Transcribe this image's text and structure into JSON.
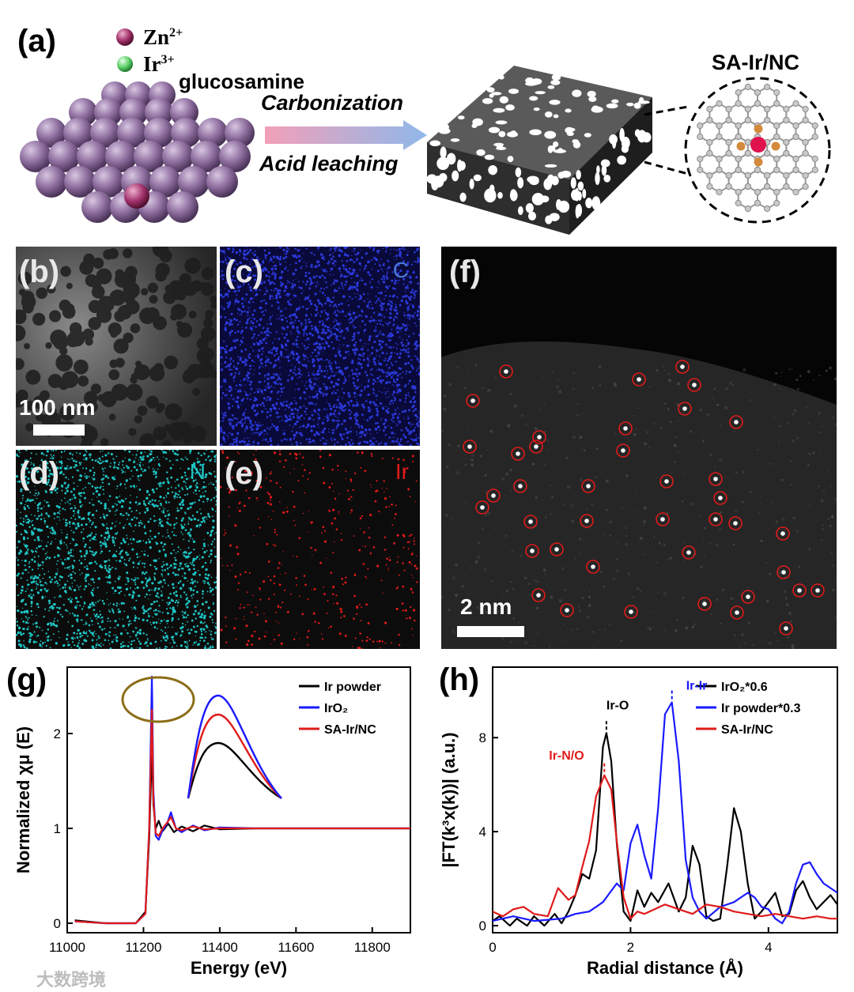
{
  "panel_a": {
    "label": "(a)",
    "legend_zn": "Zn",
    "legend_zn_sup": "2+",
    "legend_ir": "Ir",
    "legend_ir_sup": "3+",
    "glucosamine": "glucosamine",
    "step1": "Carbonization",
    "step2": "Acid leaching",
    "product": "SA-Ir/NC"
  },
  "panel_b": {
    "label": "(b)",
    "scale_bar": "100 nm"
  },
  "panel_c": {
    "label": "(c)",
    "element": "C",
    "color": "#2a38d8"
  },
  "panel_d": {
    "label": "(d)",
    "element": "N",
    "color": "#1ec4c4"
  },
  "panel_e": {
    "label": "(e)",
    "element": "Ir",
    "color": "#e01a1a"
  },
  "panel_f": {
    "label": "(f)",
    "scale_bar": "2 nm"
  },
  "panel_g": {
    "label": "(g)"
  },
  "panel_h": {
    "label": "(h)"
  },
  "watermark": "大数跨境",
  "chart_data": [
    {
      "panel": "g",
      "type": "line",
      "xlabel": "Energy (eV)",
      "ylabel": "Normalized χμ (E)",
      "xlim": [
        11000,
        11900
      ],
      "ylim": [
        -0.1,
        2.7
      ],
      "xticks": [
        11000,
        11200,
        11400,
        11600,
        11800
      ],
      "yticks": [
        0,
        1,
        2
      ],
      "legend": [
        "Ir powder",
        "IrO₂",
        "SA-Ir/NC"
      ],
      "series": [
        {
          "name": "Ir powder",
          "color": "#000000",
          "x": [
            11020,
            11100,
            11180,
            11205,
            11215,
            11222,
            11226,
            11232,
            11240,
            11250,
            11265,
            11280,
            11300,
            11330,
            11360,
            11400,
            11500,
            11600,
            11700,
            11800,
            11900
          ],
          "y": [
            0.03,
            0.0,
            0.0,
            0.12,
            0.9,
            1.85,
            1.25,
            1.0,
            1.08,
            0.97,
            1.05,
            0.96,
            1.02,
            0.97,
            1.03,
            0.99,
            1.0,
            1.0,
            1.0,
            1.0,
            1.0
          ]
        },
        {
          "name": "IrO₂",
          "color": "#1a1aff",
          "x": [
            11020,
            11100,
            11180,
            11205,
            11215,
            11222,
            11226,
            11232,
            11240,
            11250,
            11262,
            11272,
            11285,
            11300,
            11330,
            11360,
            11400,
            11500,
            11600,
            11700,
            11800,
            11900
          ],
          "y": [
            0.02,
            0.0,
            0.0,
            0.1,
            1.0,
            2.6,
            1.4,
            0.92,
            0.88,
            0.98,
            1.05,
            1.17,
            1.0,
            0.96,
            1.03,
            0.98,
            1.01,
            1.0,
            1.0,
            1.0,
            1.0,
            1.0
          ]
        },
        {
          "name": "SA-Ir/NC",
          "color": "#e01a1a",
          "x": [
            11020,
            11100,
            11180,
            11205,
            11215,
            11222,
            11226,
            11232,
            11240,
            11250,
            11262,
            11272,
            11285,
            11300,
            11330,
            11360,
            11400,
            11500,
            11600,
            11700,
            11800,
            11900
          ],
          "y": [
            0.02,
            0.0,
            0.0,
            0.1,
            1.0,
            2.25,
            1.3,
            0.95,
            0.92,
            1.0,
            1.06,
            1.12,
            1.0,
            0.98,
            1.02,
            0.99,
            1.0,
            1.0,
            1.0,
            1.0,
            1.0,
            1.0
          ]
        }
      ],
      "annotations": [
        "white-line peak circled; inset shows magnified peak region"
      ]
    },
    {
      "panel": "h",
      "type": "line",
      "xlabel": "Radial distance (Å)",
      "ylabel": "|FT(k³x(k))| (a.u.)",
      "xlim": [
        0,
        5
      ],
      "ylim": [
        -0.3,
        11
      ],
      "xticks": [
        0,
        2,
        4
      ],
      "yticks": [
        0,
        4,
        8
      ],
      "legend": [
        "IrO₂*0.6",
        "Ir powder*0.3",
        "SA-Ir/NC"
      ],
      "annotations": [
        "Ir-O",
        "Ir-Ir",
        "Ir-N/O"
      ],
      "series": [
        {
          "name": "IrO₂*0.6",
          "color": "#000000",
          "x": [
            0,
            0.1,
            0.25,
            0.35,
            0.5,
            0.6,
            0.75,
            0.9,
            1.0,
            1.1,
            1.2,
            1.3,
            1.4,
            1.5,
            1.6,
            1.65,
            1.72,
            1.8,
            1.9,
            2.0,
            2.1,
            2.2,
            2.3,
            2.4,
            2.55,
            2.7,
            2.8,
            2.9,
            3.0,
            3.1,
            3.2,
            3.3,
            3.4,
            3.5,
            3.6,
            3.7,
            3.8,
            3.9,
            4.0,
            4.1,
            4.2,
            4.3,
            4.4,
            4.5,
            4.6,
            4.7,
            4.8,
            4.9,
            5.0
          ],
          "y": [
            0.2,
            0.4,
            0.0,
            0.3,
            0.0,
            0.4,
            0.0,
            0.5,
            0.1,
            0.6,
            1.3,
            2.2,
            2.0,
            3.2,
            7.6,
            8.2,
            7.0,
            3.5,
            0.6,
            0.2,
            1.5,
            0.8,
            1.4,
            1.0,
            1.8,
            0.6,
            1.2,
            3.4,
            2.6,
            0.4,
            0.2,
            0.3,
            2.5,
            5.0,
            4.0,
            1.8,
            0.3,
            0.6,
            1.0,
            1.4,
            0.4,
            0.5,
            1.5,
            1.9,
            1.2,
            0.7,
            1.0,
            1.3,
            0.9
          ]
        },
        {
          "name": "Ir powder*0.3",
          "color": "#1a1aff",
          "x": [
            0,
            0.3,
            0.6,
            1.0,
            1.2,
            1.4,
            1.5,
            1.6,
            1.7,
            1.8,
            1.9,
            2.0,
            2.1,
            2.2,
            2.3,
            2.4,
            2.5,
            2.6,
            2.7,
            2.8,
            2.9,
            3.0,
            3.1,
            3.3,
            3.5,
            3.7,
            3.8,
            3.9,
            4.0,
            4.1,
            4.2,
            4.3,
            4.4,
            4.5,
            4.6,
            4.7,
            4.8,
            4.9,
            5.0
          ],
          "y": [
            0.2,
            0.4,
            0.2,
            0.3,
            0.5,
            0.6,
            0.8,
            1.0,
            1.4,
            1.8,
            1.5,
            3.5,
            4.3,
            3.0,
            2.0,
            5.0,
            9.0,
            9.5,
            7.0,
            2.8,
            1.2,
            0.6,
            0.3,
            0.8,
            1.0,
            1.4,
            1.2,
            0.8,
            0.7,
            0.3,
            0.1,
            0.6,
            1.8,
            2.6,
            2.7,
            2.2,
            1.8,
            1.6,
            1.4
          ]
        },
        {
          "name": "SA-Ir/NC",
          "color": "#e01a1a",
          "x": [
            0,
            0.15,
            0.3,
            0.45,
            0.6,
            0.8,
            0.95,
            1.1,
            1.2,
            1.3,
            1.4,
            1.5,
            1.62,
            1.72,
            1.8,
            1.9,
            2.0,
            2.1,
            2.2,
            2.35,
            2.5,
            2.7,
            2.9,
            3.1,
            3.3,
            3.5,
            3.7,
            3.9,
            4.1,
            4.3,
            4.5,
            4.7,
            4.9,
            5.0
          ],
          "y": [
            0.6,
            0.4,
            0.7,
            0.8,
            0.5,
            0.4,
            1.6,
            1.1,
            1.3,
            2.5,
            3.6,
            5.5,
            6.4,
            5.8,
            3.6,
            1.2,
            0.3,
            0.6,
            0.5,
            0.7,
            0.9,
            0.7,
            0.5,
            0.9,
            0.8,
            0.6,
            0.5,
            0.4,
            0.5,
            0.4,
            0.3,
            0.4,
            0.3,
            0.3
          ]
        }
      ]
    }
  ]
}
